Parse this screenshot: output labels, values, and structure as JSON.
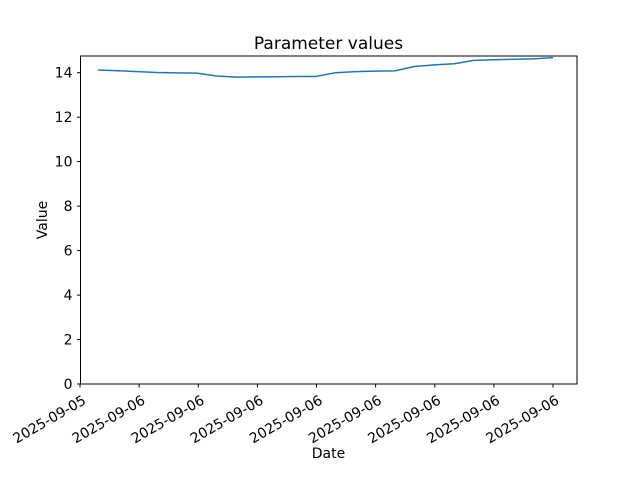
{
  "figure": {
    "background": "#ffffff",
    "spine_color": "#000000",
    "text_color": "#000000"
  },
  "chart_data": {
    "type": "line",
    "title": "Parameter values",
    "xlabel": "Date",
    "ylabel": "Value",
    "x_tick_labels": [
      "2025-09-05",
      "2025-09-06",
      "2025-09-06",
      "2025-09-06",
      "2025-09-06",
      "2025-09-06",
      "2025-09-06",
      "2025-09-06",
      "2025-09-06"
    ],
    "x_tick_rotation_deg": 30,
    "y_tick_values": [
      0,
      2,
      4,
      6,
      8,
      10,
      12,
      14
    ],
    "ylim": [
      0,
      14.75
    ],
    "grid": false,
    "legend": "none",
    "series": [
      {
        "name": "Parameter values",
        "color": "#1f77b4",
        "values": [
          14.12,
          14.09,
          14.05,
          14.01,
          13.99,
          13.98,
          13.85,
          13.8,
          13.81,
          13.82,
          13.83,
          13.83,
          14.0,
          14.05,
          14.07,
          14.08,
          14.28,
          14.35,
          14.4,
          14.55,
          14.58,
          14.6,
          14.62,
          14.68
        ]
      }
    ]
  }
}
